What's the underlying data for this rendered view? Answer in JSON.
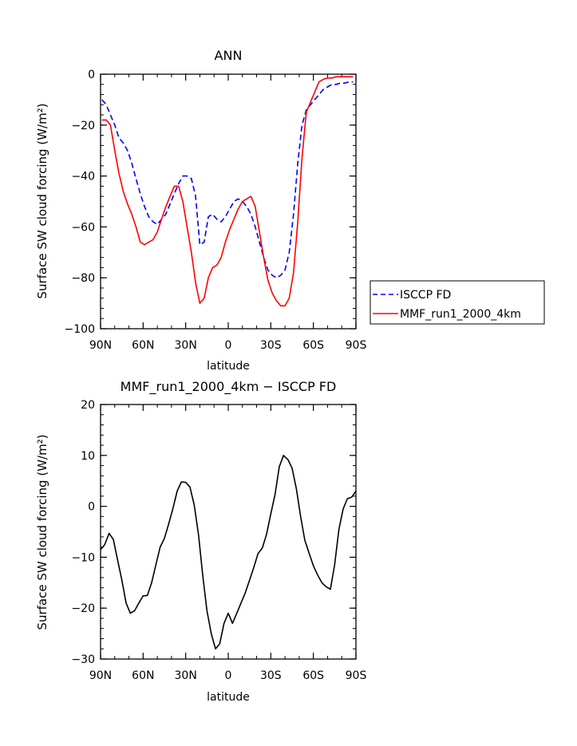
{
  "chart_data": [
    {
      "type": "line",
      "title": "ANN",
      "xlabel": "latitude",
      "ylabel": "Surface SW cloud forcing (W/m²)",
      "xlim": [
        90,
        -90
      ],
      "ylim": [
        -100,
        0
      ],
      "x_ticks": [
        90,
        60,
        30,
        0,
        -30,
        -60,
        -90
      ],
      "x_tick_labels": [
        "90N",
        "60N",
        "30N",
        "0",
        "30S",
        "60S",
        "90S"
      ],
      "y_ticks": [
        0,
        -20,
        -40,
        -60,
        -80,
        -100
      ],
      "y_tick_labels": [
        "0",
        "−20",
        "−40",
        "−60",
        "−80",
        "−100"
      ],
      "legend_position": "right",
      "series": [
        {
          "name": "ISCCP FD",
          "color": "#0000ff",
          "dash": "dashed",
          "x": [
            89,
            86,
            83,
            80,
            77,
            74,
            71,
            68,
            65,
            62,
            59,
            56,
            53,
            50,
            47,
            44,
            41,
            38,
            35,
            32,
            29,
            26,
            23,
            20,
            17,
            14,
            11,
            8,
            5,
            2,
            -1,
            -4,
            -7,
            -10,
            -13,
            -16,
            -19,
            -22,
            -25,
            -28,
            -31,
            -34,
            -37,
            -40,
            -43,
            -46,
            -49,
            -52,
            -55,
            -58,
            -61,
            -64,
            -67,
            -70,
            -73,
            -76,
            -79,
            -82,
            -85,
            -88
          ],
          "y": [
            -10,
            -12,
            -16,
            -20,
            -25,
            -27,
            -30,
            -35,
            -41,
            -47,
            -52,
            -56,
            -58,
            -59,
            -57,
            -55,
            -51,
            -47,
            -43,
            -40,
            -40,
            -41,
            -48,
            -67,
            -66,
            -56,
            -55,
            -57,
            -58,
            -56,
            -53,
            -50,
            -49,
            -50,
            -52,
            -55,
            -60,
            -66,
            -72,
            -77,
            -79,
            -80,
            -79,
            -77,
            -70,
            -55,
            -35,
            -20,
            -14,
            -12,
            -10,
            -8,
            -6,
            -5,
            -4,
            -4,
            -3.5,
            -3.5,
            -3,
            -3
          ]
        },
        {
          "name": "MMF_run1_2000_4km",
          "color": "#ff0000",
          "dash": "solid",
          "x": [
            89,
            86,
            83,
            80,
            77,
            74,
            71,
            68,
            65,
            62,
            59,
            56,
            53,
            50,
            47,
            44,
            41,
            38,
            35,
            32,
            29,
            26,
            23,
            20,
            17,
            14,
            11,
            8,
            5,
            2,
            -1,
            -4,
            -7,
            -10,
            -13,
            -16,
            -19,
            -22,
            -25,
            -28,
            -31,
            -34,
            -37,
            -40,
            -43,
            -46,
            -49,
            -52,
            -55,
            -58,
            -61,
            -64,
            -67,
            -70,
            -73,
            -76,
            -79,
            -82,
            -85,
            -88
          ],
          "y": [
            -18,
            -18,
            -20,
            -30,
            -39,
            -46,
            -51,
            -55,
            -60,
            -66,
            -67,
            -66,
            -65,
            -62,
            -57,
            -52,
            -48,
            -44,
            -44,
            -50,
            -60,
            -70,
            -82,
            -90,
            -88,
            -80,
            -76,
            -75,
            -72,
            -66,
            -61,
            -57,
            -53,
            -50,
            -49,
            -48,
            -52,
            -62,
            -72,
            -81,
            -86,
            -89,
            -91,
            -91,
            -88,
            -78,
            -58,
            -33,
            -15,
            -11,
            -7,
            -3,
            -2,
            -1.5,
            -1.5,
            -1,
            -1,
            -1,
            -1,
            -1
          ]
        }
      ]
    },
    {
      "type": "line",
      "title": "MMF_run1_2000_4km − ISCCP FD",
      "xlabel": "latitude",
      "ylabel": "Surface SW cloud forcing (W/m²)",
      "xlim": [
        90,
        -90
      ],
      "ylim": [
        -30,
        20
      ],
      "x_ticks": [
        90,
        60,
        30,
        0,
        -30,
        -60,
        -90
      ],
      "x_tick_labels": [
        "90N",
        "60N",
        "30N",
        "0",
        "30S",
        "60S",
        "90S"
      ],
      "y_ticks": [
        20,
        10,
        0,
        -10,
        -20,
        -30
      ],
      "y_tick_labels": [
        "20",
        "10",
        "0",
        "−10",
        "−20",
        "−30"
      ],
      "series": [
        {
          "color": "#000000",
          "dash": "solid",
          "x": [
            90,
            87,
            84,
            81,
            78,
            75,
            72,
            69,
            66,
            63,
            60,
            57,
            54,
            51,
            48,
            45,
            42,
            39,
            36,
            33,
            30,
            27,
            24,
            21,
            18,
            15,
            12,
            9,
            6,
            3,
            0,
            -3,
            -6,
            -9,
            -12,
            -15,
            -18,
            -21,
            -24,
            -27,
            -30,
            -33,
            -36,
            -39,
            -42,
            -45,
            -48,
            -51,
            -54,
            -57,
            -60,
            -63,
            -66,
            -69,
            -72,
            -75,
            -78,
            -81,
            -84,
            -87,
            -90
          ],
          "y": [
            -8.5,
            -7.5,
            -5.3,
            -6.5,
            -10.5,
            -14.5,
            -19,
            -21,
            -20.5,
            -19,
            -17.6,
            -17.5,
            -15,
            -11.5,
            -8,
            -6.3,
            -3.5,
            -0.4,
            3,
            4.8,
            4.7,
            3.8,
            0.3,
            -5.5,
            -13.5,
            -20.5,
            -25,
            -28,
            -27,
            -23,
            -21,
            -23,
            -21,
            -19,
            -17,
            -14.5,
            -12,
            -9.3,
            -8.2,
            -5.5,
            -1.5,
            2.4,
            7.8,
            10,
            9.2,
            7.5,
            3.5,
            -2,
            -6.7,
            -9.2,
            -11.7,
            -13.5,
            -15,
            -15.8,
            -16.3,
            -11.5,
            -4.5,
            -0.5,
            1.5,
            1.8,
            3
          ]
        }
      ]
    }
  ]
}
